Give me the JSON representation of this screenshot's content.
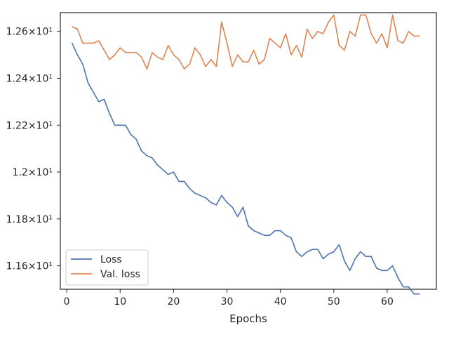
{
  "chart_data": {
    "type": "line",
    "title": "",
    "xlabel": "Epochs",
    "ylabel": "",
    "xlim": [
      -1.2,
      69.2
    ],
    "ylim": [
      11.5,
      12.68
    ],
    "x_ticks": [
      0,
      10,
      20,
      30,
      40,
      50,
      60
    ],
    "y_ticks": [
      {
        "value": 11.6,
        "label": "1.16×10¹"
      },
      {
        "value": 11.8,
        "label": "1.18×10¹"
      },
      {
        "value": 12.0,
        "label": "1.2×10¹"
      },
      {
        "value": 12.2,
        "label": "1.22×10¹"
      },
      {
        "value": 12.4,
        "label": "1.24×10¹"
      },
      {
        "value": 12.6,
        "label": "1.26×10¹"
      }
    ],
    "grid": false,
    "legend_position": "lower-left",
    "x": [
      1,
      2,
      3,
      4,
      5,
      6,
      7,
      8,
      9,
      10,
      11,
      12,
      13,
      14,
      15,
      16,
      17,
      18,
      19,
      20,
      21,
      22,
      23,
      24,
      25,
      26,
      27,
      28,
      29,
      30,
      31,
      32,
      33,
      34,
      35,
      36,
      37,
      38,
      39,
      40,
      41,
      42,
      43,
      44,
      45,
      46,
      47,
      48,
      49,
      50,
      51,
      52,
      53,
      54,
      55,
      56,
      57,
      58,
      59,
      60,
      61,
      62,
      63,
      64,
      65,
      66
    ],
    "series": [
      {
        "name": "Loss",
        "color": "#4c72b0",
        "values": [
          12.55,
          12.5,
          12.46,
          12.38,
          12.34,
          12.3,
          12.31,
          12.25,
          12.2,
          12.2,
          12.2,
          12.16,
          12.14,
          12.09,
          12.07,
          12.06,
          12.03,
          12.01,
          11.99,
          12.0,
          11.96,
          11.96,
          11.93,
          11.91,
          11.9,
          11.89,
          11.87,
          11.86,
          11.9,
          11.87,
          11.85,
          11.81,
          11.85,
          11.77,
          11.75,
          11.74,
          11.73,
          11.73,
          11.75,
          11.75,
          11.73,
          11.72,
          11.66,
          11.64,
          11.66,
          11.67,
          11.67,
          11.63,
          11.65,
          11.66,
          11.69,
          11.62,
          11.58,
          11.63,
          11.66,
          11.64,
          11.64,
          11.59,
          11.58,
          11.58,
          11.6,
          11.55,
          11.51,
          11.51,
          11.48,
          11.48
        ]
      },
      {
        "name": "Val. loss",
        "color": "#dd8452",
        "values": [
          12.62,
          12.61,
          12.55,
          12.55,
          12.55,
          12.56,
          12.52,
          12.48,
          12.5,
          12.53,
          12.51,
          12.51,
          12.51,
          12.49,
          12.44,
          12.51,
          12.49,
          12.48,
          12.54,
          12.5,
          12.48,
          12.44,
          12.46,
          12.53,
          12.5,
          12.45,
          12.48,
          12.45,
          12.64,
          12.55,
          12.45,
          12.5,
          12.47,
          12.47,
          12.52,
          12.46,
          12.48,
          12.57,
          12.55,
          12.53,
          12.59,
          12.5,
          12.54,
          12.49,
          12.61,
          12.57,
          12.6,
          12.59,
          12.64,
          12.67,
          12.54,
          12.52,
          12.6,
          12.58,
          12.67,
          12.67,
          12.59,
          12.55,
          12.59,
          12.53,
          12.67,
          12.56,
          12.55,
          12.6,
          12.58,
          12.58
        ]
      }
    ]
  }
}
